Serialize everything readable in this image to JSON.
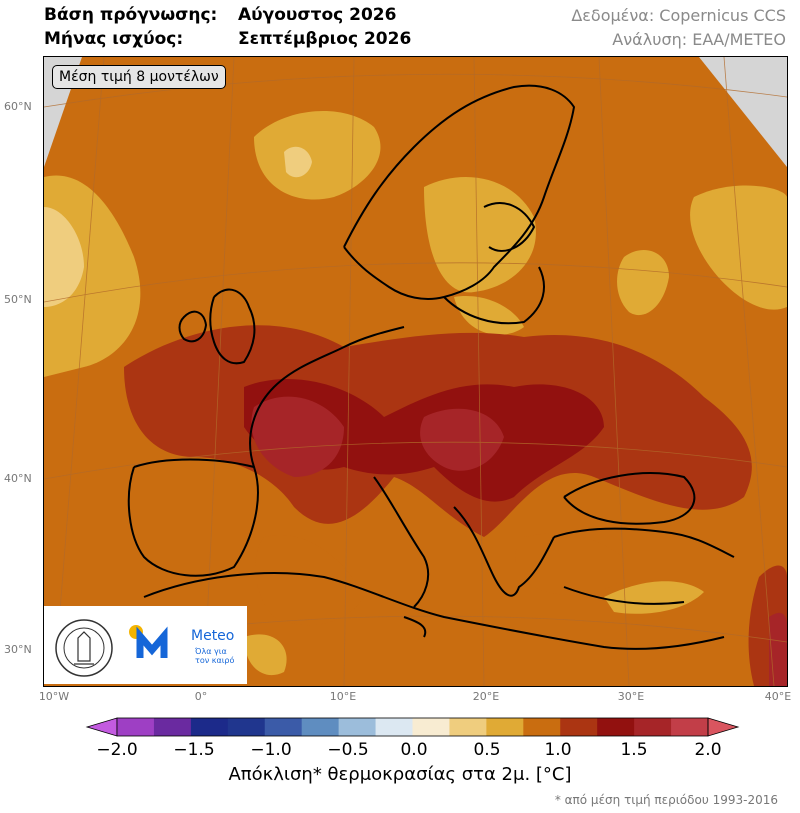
{
  "header": {
    "base_label": "Βάση πρόγνωσης:",
    "base_value": "Αύγουστος 2026",
    "valid_label": "Μήνας ισχύος:",
    "valid_value": "Σεπτέμβριος 2026",
    "data_source": "Δεδομένα: Copernicus CCS",
    "analysis": "Ανάλυση: ΕΑΑ/METEO"
  },
  "map": {
    "models_label": "Μέση τιμή 8 μοντέλων",
    "lat_labels": [
      "60°N",
      "50°N",
      "40°N",
      "30°N"
    ],
    "lon_labels": [
      "10°W",
      "0°",
      "10°E",
      "20°E",
      "30°E",
      "40°E"
    ]
  },
  "logos": {
    "meteo_name": "Meteo",
    "meteo_tagline_1": "Όλα για",
    "meteo_tagline_2": "τον καιρό"
  },
  "colorbar": {
    "ticks": [
      "−2.0",
      "−1.5",
      "−1.0",
      "−0.5",
      "0.0",
      "0.5",
      "1.0",
      "1.5",
      "2.0"
    ],
    "label": "Απόκλιση* θερμοκρασίας στα 2μ. [°C]",
    "note": "* από μέση τιμή περιόδου 1993-2016",
    "colors": [
      "#9e3fc4",
      "#6a2aa0",
      "#1c2a8a",
      "#20368e",
      "#3b5ba8",
      "#5f8dc0",
      "#9cbddb",
      "#dce8f2",
      "#f8ecd2",
      "#efcd7e",
      "#e0aa35",
      "#c96d10",
      "#ab3512",
      "#92110f",
      "#a62528",
      "#c23e48"
    ]
  }
}
